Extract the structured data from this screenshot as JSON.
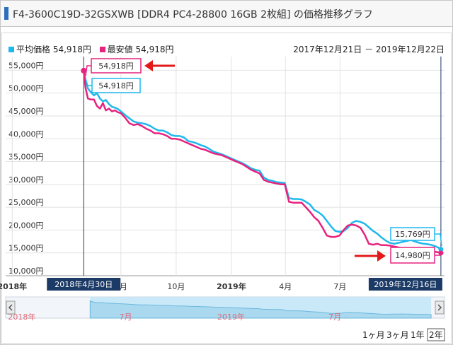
{
  "title": "F4-3600C19D-32GSXWB [DDR4 PC4-28800 16GB 2枚組] の価格推移グラフ",
  "legend": {
    "avg_label": "平均価格",
    "avg_value": "54,918円",
    "min_label": "最安値",
    "min_value": "54,918円"
  },
  "date_range": "2017年12月21日 － 2019年12月22日",
  "colors": {
    "avg": "#1fb8ee",
    "min": "#e6237e",
    "arrow": "#e31919",
    "nav_dark": "#1b3a66"
  },
  "chart_data": {
    "type": "line",
    "title": "",
    "xlabel": "",
    "ylabel": "",
    "ylim": [
      10000,
      58000
    ],
    "y_ticks": [
      "55,000円",
      "50,000円",
      "45,000円",
      "40,000円",
      "35,000円",
      "30,000円",
      "25,000円",
      "20,000円",
      "15,000円",
      "10,000円"
    ],
    "y_tick_values": [
      55000,
      50000,
      45000,
      40000,
      35000,
      30000,
      25000,
      20000,
      15000,
      10000
    ],
    "x_ticks": [
      {
        "x": "2018-01-01",
        "label": "2018年",
        "bold": true
      },
      {
        "x": "2018-07-01",
        "label": "7月",
        "bold": false
      },
      {
        "x": "2018-10-01",
        "label": "10月",
        "bold": false
      },
      {
        "x": "2019-01-01",
        "label": "2019年",
        "bold": true
      },
      {
        "x": "2019-04-01",
        "label": "4月",
        "bold": false
      },
      {
        "x": "2019-07-01",
        "label": "7月",
        "bold": false
      }
    ],
    "x_range": [
      "2017-12-21",
      "2019-12-22"
    ],
    "highlight_start": {
      "x": "2018-04-30",
      "label": "2018年4月30日"
    },
    "highlight_end": {
      "x": "2019-12-16",
      "label": "2019年12月16日"
    },
    "series": [
      {
        "name": "平均価格",
        "x": [
          "2018-04-30",
          "2018-05-03",
          "2018-05-07",
          "2018-05-12",
          "2018-05-17",
          "2018-05-22",
          "2018-05-27",
          "2018-06-01",
          "2018-06-06",
          "2018-06-11",
          "2018-06-16",
          "2018-06-21",
          "2018-06-26",
          "2018-07-01",
          "2018-07-08",
          "2018-07-15",
          "2018-07-22",
          "2018-07-29",
          "2018-08-05",
          "2018-08-12",
          "2018-08-19",
          "2018-08-26",
          "2018-09-02",
          "2018-09-09",
          "2018-09-16",
          "2018-09-23",
          "2018-09-30",
          "2018-10-07",
          "2018-10-14",
          "2018-10-21",
          "2018-10-28",
          "2018-11-04",
          "2018-11-11",
          "2018-11-18",
          "2018-11-25",
          "2018-12-02",
          "2018-12-09",
          "2018-12-16",
          "2018-12-23",
          "2018-12-30",
          "2019-01-06",
          "2019-01-13",
          "2019-01-20",
          "2019-01-27",
          "2019-02-03",
          "2019-02-10",
          "2019-02-17",
          "2019-02-24",
          "2019-03-03",
          "2019-03-10",
          "2019-03-17",
          "2019-03-24",
          "2019-03-31",
          "2019-04-07",
          "2019-04-14",
          "2019-04-21",
          "2019-04-28",
          "2019-05-05",
          "2019-05-12",
          "2019-05-19",
          "2019-05-26",
          "2019-06-02",
          "2019-06-09",
          "2019-06-16",
          "2019-06-23",
          "2019-06-30",
          "2019-07-07",
          "2019-07-14",
          "2019-07-21",
          "2019-07-28",
          "2019-08-04",
          "2019-08-11",
          "2019-08-18",
          "2019-08-25",
          "2019-09-01",
          "2019-09-08",
          "2019-09-15",
          "2019-09-22",
          "2019-09-29",
          "2019-10-06",
          "2019-10-13",
          "2019-10-20",
          "2019-10-27",
          "2019-11-03",
          "2019-11-10",
          "2019-11-17",
          "2019-11-24",
          "2019-12-01",
          "2019-12-08",
          "2019-12-14",
          "2019-12-16"
        ],
        "values": [
          54918,
          53000,
          51000,
          50200,
          49500,
          50000,
          48800,
          48200,
          48500,
          47600,
          47000,
          46800,
          46500,
          46000,
          45200,
          44500,
          43800,
          43500,
          43400,
          43200,
          42800,
          42200,
          41800,
          41800,
          41400,
          40800,
          40600,
          40600,
          40300,
          39500,
          39300,
          39000,
          38600,
          38300,
          37800,
          37200,
          36900,
          36600,
          36200,
          35800,
          35400,
          35000,
          34600,
          34100,
          33500,
          33200,
          33000,
          31500,
          31000,
          30800,
          30500,
          30400,
          30300,
          27000,
          26800,
          26800,
          26700,
          26200,
          25600,
          24400,
          23900,
          23200,
          22000,
          20800,
          19800,
          19600,
          19800,
          20500,
          21600,
          22000,
          21800,
          21400,
          20600,
          19800,
          19200,
          18400,
          17700,
          17200,
          17000,
          17200,
          17400,
          17600,
          17800,
          17500,
          17200,
          17000,
          16900,
          16700,
          16400,
          16000,
          15769
        ]
      },
      {
        "name": "最安値",
        "x": [
          "2018-04-30",
          "2018-05-03",
          "2018-05-07",
          "2018-05-12",
          "2018-05-17",
          "2018-05-22",
          "2018-05-27",
          "2018-06-01",
          "2018-06-06",
          "2018-06-11",
          "2018-06-16",
          "2018-06-21",
          "2018-06-26",
          "2018-07-01",
          "2018-07-08",
          "2018-07-15",
          "2018-07-22",
          "2018-07-29",
          "2018-08-05",
          "2018-08-12",
          "2018-08-19",
          "2018-08-26",
          "2018-09-02",
          "2018-09-09",
          "2018-09-16",
          "2018-09-23",
          "2018-09-30",
          "2018-10-07",
          "2018-10-14",
          "2018-10-21",
          "2018-10-28",
          "2018-11-04",
          "2018-11-11",
          "2018-11-18",
          "2018-11-25",
          "2018-12-02",
          "2018-12-09",
          "2018-12-16",
          "2018-12-23",
          "2018-12-30",
          "2019-01-06",
          "2019-01-13",
          "2019-01-20",
          "2019-01-27",
          "2019-02-03",
          "2019-02-10",
          "2019-02-17",
          "2019-02-24",
          "2019-03-03",
          "2019-03-10",
          "2019-03-17",
          "2019-03-24",
          "2019-03-31",
          "2019-04-07",
          "2019-04-14",
          "2019-04-21",
          "2019-04-28",
          "2019-05-05",
          "2019-05-12",
          "2019-05-19",
          "2019-05-26",
          "2019-06-02",
          "2019-06-09",
          "2019-06-16",
          "2019-06-23",
          "2019-06-30",
          "2019-07-07",
          "2019-07-14",
          "2019-07-21",
          "2019-07-28",
          "2019-08-04",
          "2019-08-11",
          "2019-08-18",
          "2019-08-25",
          "2019-09-01",
          "2019-09-08",
          "2019-09-15",
          "2019-09-22",
          "2019-09-29",
          "2019-10-06",
          "2019-10-13",
          "2019-10-20",
          "2019-10-27",
          "2019-11-03",
          "2019-11-10",
          "2019-11-17",
          "2019-11-24",
          "2019-12-01",
          "2019-12-08",
          "2019-12-14",
          "2019-12-16"
        ],
        "values": [
          54918,
          51200,
          48800,
          48600,
          48600,
          47200,
          46600,
          47800,
          46200,
          46600,
          46000,
          46200,
          45800,
          45600,
          44600,
          43400,
          43000,
          43200,
          42800,
          42200,
          41800,
          41200,
          41200,
          41000,
          40600,
          40000,
          40000,
          39800,
          39400,
          39000,
          38600,
          38200,
          37800,
          37600,
          37200,
          36800,
          36600,
          36400,
          36000,
          35600,
          35200,
          34800,
          34400,
          33800,
          33200,
          32800,
          32400,
          31000,
          30600,
          30400,
          30200,
          30000,
          30000,
          26200,
          26000,
          26000,
          26000,
          25000,
          24000,
          22800,
          22000,
          20500,
          18800,
          18500,
          18500,
          18800,
          20000,
          21000,
          21200,
          21000,
          20500,
          19000,
          17000,
          16800,
          17000,
          16700,
          16700,
          16600,
          16400,
          16200,
          16000,
          15800,
          15700,
          15600,
          15500,
          15500,
          15400,
          15300,
          15200,
          15100,
          14980
        ]
      }
    ],
    "annotations": [
      {
        "x": "2018-04-30",
        "y": 54918,
        "text": "54,918円",
        "series": "最安値",
        "position": "above"
      },
      {
        "x": "2018-04-30",
        "y": 54918,
        "text": "54,918円",
        "series": "平均価格",
        "position": "below"
      },
      {
        "x": "2019-12-16",
        "y": 15769,
        "text": "15,769円",
        "series": "平均価格",
        "position": "left"
      },
      {
        "x": "2019-12-16",
        "y": 14980,
        "text": "14,980円",
        "series": "最安値",
        "position": "left"
      }
    ],
    "navigator": {
      "x_ticks": [
        {
          "x": "2018-01-01",
          "label": "2018年"
        },
        {
          "x": "2018-07-01",
          "label": "7月"
        },
        {
          "x": "2019-01-01",
          "label": "2019年"
        },
        {
          "x": "2019-07-01",
          "label": "7月"
        }
      ]
    },
    "grid": true,
    "legend_position": "top-left"
  },
  "period_buttons": [
    {
      "label": "1ヶ月",
      "active": false
    },
    {
      "label": "3ヶ月",
      "active": false
    },
    {
      "label": "1年",
      "active": false
    },
    {
      "label": "2年",
      "active": true
    }
  ]
}
